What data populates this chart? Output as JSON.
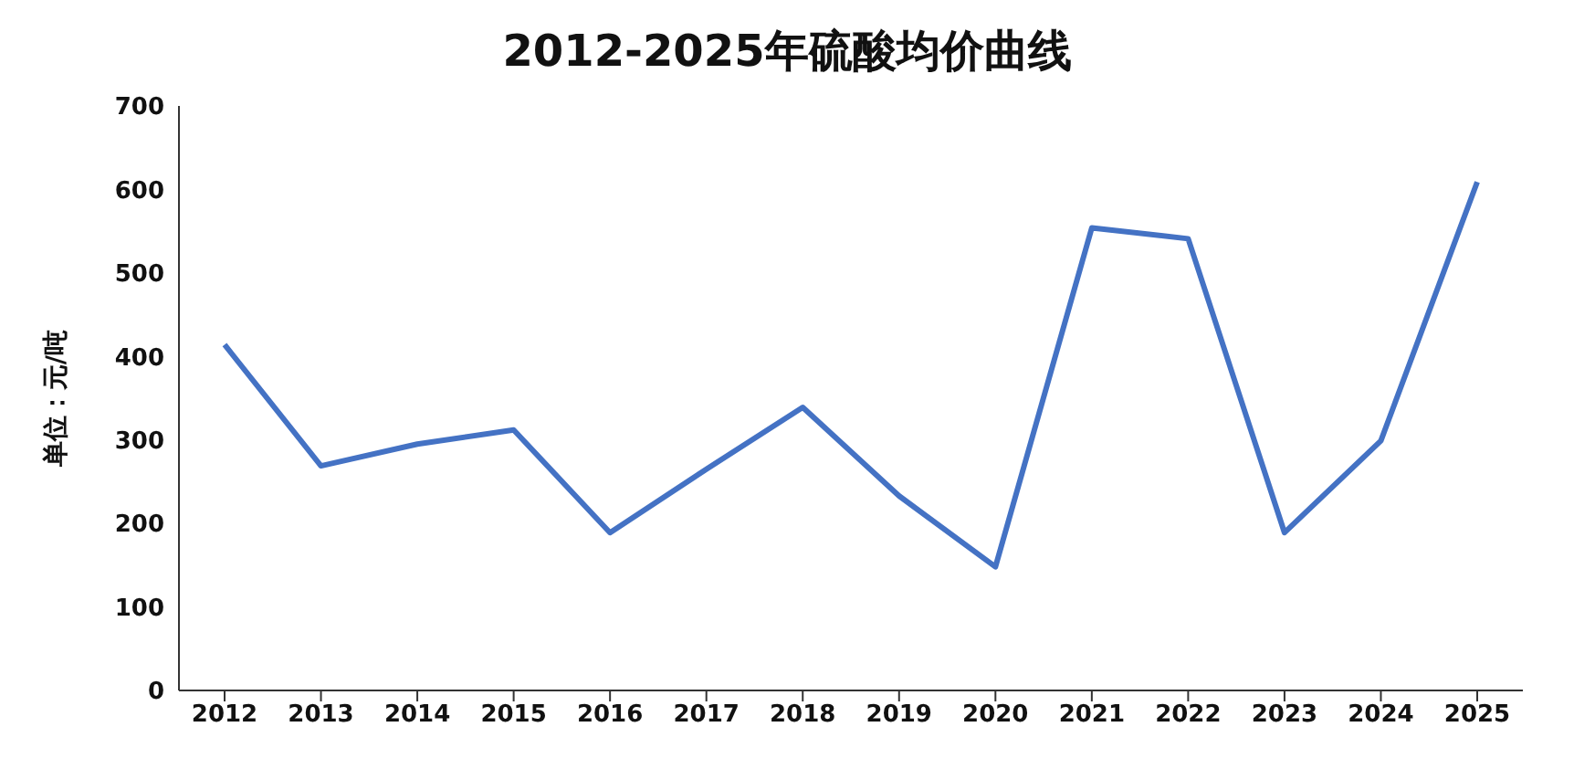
{
  "chart_data": {
    "type": "line",
    "title": "2012-2025年硫酸均价曲线",
    "ylabel": "单位：元/吨",
    "categories": [
      "2012",
      "2013",
      "2014",
      "2015",
      "2016",
      "2017",
      "2018",
      "2019",
      "2020",
      "2021",
      "2022",
      "2023",
      "2024",
      "2025"
    ],
    "series": [
      {
        "color": "#4472c4",
        "values": [
          414,
          269,
          295,
          312,
          189,
          265,
          339,
          233,
          148,
          554,
          541,
          189,
          299,
          609
        ]
      }
    ],
    "ylim": [
      0,
      700
    ],
    "yticks": [
      0,
      100,
      200,
      300,
      400,
      500,
      600,
      700
    ],
    "grid": false,
    "legend": false,
    "marker": "none",
    "line_style": "solid"
  }
}
